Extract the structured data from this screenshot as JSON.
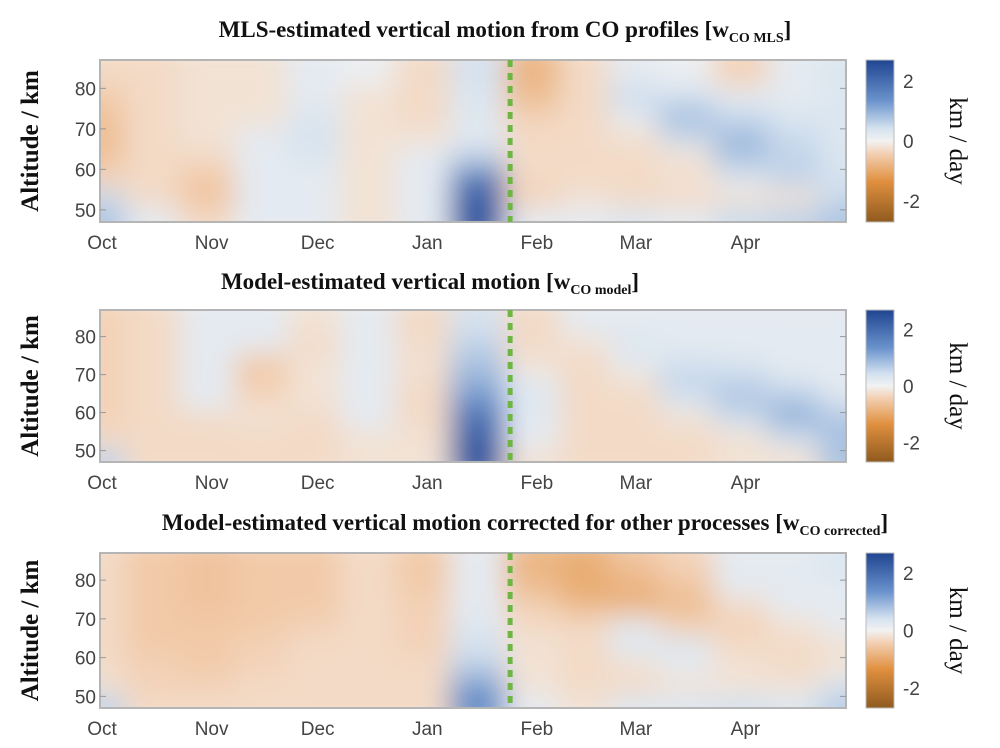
{
  "chart_data": [
    {
      "type": "heatmap",
      "title": "MLS-estimated vertical motion from CO profiles [w",
      "title_subscript": "CO MLS",
      "title_close": "]",
      "ylabel": "Altitude / km",
      "colorbar_label": "km / day",
      "ylim": [
        47,
        87
      ],
      "yticks": [
        50,
        60,
        70,
        80
      ],
      "xlim": [
        "2000-10-01",
        "2001-04-30"
      ],
      "xtick_labels": [
        "Oct",
        "Nov",
        "Dec",
        "Jan",
        "Feb",
        "Mar",
        "Apr"
      ],
      "clim": [
        -2.7,
        2.7
      ],
      "cbar_ticks": [
        2,
        0,
        -2
      ],
      "marker_line_date": "2001-01-25",
      "x": [
        "10-01",
        "10-15",
        "11-01",
        "11-15",
        "12-01",
        "12-15",
        "01-01",
        "01-15",
        "02-01",
        "02-15",
        "03-01",
        "03-15",
        "04-01",
        "04-15",
        "04-30"
      ],
      "y": [
        83,
        78,
        73,
        68,
        63,
        58,
        53,
        48
      ],
      "z": [
        [
          -0.3,
          -0.3,
          -0.2,
          -0.2,
          0.2,
          0.1,
          -0.3,
          0.4,
          -0.8,
          -0.3,
          0.2,
          0.1,
          -0.4,
          0.2,
          0.3
        ],
        [
          -0.5,
          -0.3,
          -0.2,
          -0.2,
          0.2,
          -0.2,
          -0.3,
          0.3,
          -0.7,
          -0.3,
          0.5,
          0.4,
          0.2,
          0.2,
          0.3
        ],
        [
          -0.6,
          -0.3,
          -0.2,
          -0.2,
          0.3,
          -0.2,
          -0.3,
          0.3,
          -0.4,
          -0.3,
          0.2,
          0.9,
          0.5,
          0.3,
          0.3
        ],
        [
          -0.7,
          -0.3,
          -0.2,
          0.2,
          0.4,
          -0.2,
          -0.2,
          0.2,
          -0.3,
          -0.3,
          -0.2,
          0.5,
          0.9,
          0.5,
          0.3
        ],
        [
          -0.6,
          -0.3,
          -0.3,
          0.2,
          0.3,
          -0.2,
          0.2,
          0.6,
          -0.3,
          -0.3,
          -0.3,
          -0.2,
          0.8,
          0.6,
          0.3
        ],
        [
          -0.4,
          -0.3,
          -0.5,
          0.2,
          0.2,
          -0.2,
          0.2,
          1.8,
          -0.3,
          -0.3,
          -0.3,
          -0.2,
          0.3,
          0.6,
          0.4
        ],
        [
          0.5,
          -0.3,
          -0.6,
          0.2,
          0.2,
          -0.2,
          0.2,
          2.2,
          -0.4,
          -0.2,
          -0.3,
          -0.3,
          -0.2,
          -0.2,
          0.5
        ],
        [
          0.8,
          0.2,
          -0.3,
          0.2,
          0.2,
          -0.2,
          0.2,
          2.4,
          0.2,
          0.2,
          0.3,
          0.2,
          0.5,
          0.6,
          0.8
        ]
      ]
    },
    {
      "type": "heatmap",
      "title": "Model-estimated vertical motion [w",
      "title_subscript": "CO model",
      "title_close": "]",
      "ylabel": "Altitude / km",
      "colorbar_label": "km / day",
      "ylim": [
        47,
        87
      ],
      "yticks": [
        50,
        60,
        70,
        80
      ],
      "xlim": [
        "2000-10-01",
        "2001-04-30"
      ],
      "xtick_labels": [
        "Oct",
        "Nov",
        "Dec",
        "Jan",
        "Feb",
        "Mar",
        "Apr"
      ],
      "clim": [
        -2.7,
        2.7
      ],
      "cbar_ticks": [
        2,
        0,
        -2
      ],
      "marker_line_date": "2001-01-25",
      "x": [
        "10-01",
        "10-15",
        "11-01",
        "11-15",
        "12-01",
        "12-15",
        "01-01",
        "01-15",
        "02-01",
        "02-15",
        "03-01",
        "03-15",
        "04-01",
        "04-15",
        "04-30"
      ],
      "y": [
        83,
        78,
        73,
        68,
        63,
        58,
        53,
        48
      ],
      "z": [
        [
          -0.4,
          -0.3,
          0.2,
          0.2,
          -0.2,
          0.2,
          -0.3,
          0.4,
          -0.3,
          0.2,
          0.2,
          0.2,
          0.2,
          0.2,
          0.2
        ],
        [
          -0.4,
          -0.3,
          0.2,
          0.2,
          -0.3,
          0.2,
          -0.3,
          0.6,
          -0.3,
          -0.2,
          0.3,
          0.2,
          0.2,
          0.2,
          0.2
        ],
        [
          -0.4,
          -0.3,
          0.2,
          -0.5,
          -0.2,
          0.2,
          -0.2,
          0.8,
          -0.2,
          -0.3,
          0.2,
          0.4,
          0.3,
          0.2,
          0.2
        ],
        [
          -0.4,
          -0.3,
          0.2,
          -0.5,
          -0.2,
          0.2,
          -0.3,
          1.0,
          0.2,
          -0.3,
          -0.2,
          0.6,
          0.6,
          0.3,
          0.2
        ],
        [
          -0.4,
          -0.3,
          0.2,
          -0.3,
          -0.2,
          0.2,
          -0.3,
          1.4,
          0.3,
          -0.3,
          -0.3,
          0.3,
          0.8,
          0.8,
          0.3
        ],
        [
          -0.4,
          -0.3,
          -0.3,
          -0.2,
          -0.3,
          0.2,
          -0.3,
          2.0,
          0.2,
          -0.3,
          -0.3,
          -0.2,
          0.4,
          1.0,
          0.8
        ],
        [
          -0.3,
          -0.3,
          -0.3,
          -0.3,
          -0.3,
          -0.2,
          -0.2,
          2.2,
          0.2,
          -0.3,
          -0.3,
          -0.3,
          -0.2,
          0.4,
          0.8
        ],
        [
          0.6,
          -0.3,
          -0.3,
          -0.3,
          -0.3,
          -0.2,
          -0.2,
          2.4,
          -0.2,
          -0.3,
          -0.3,
          -0.3,
          -0.2,
          -0.2,
          0.8
        ]
      ]
    },
    {
      "type": "heatmap",
      "title": "Model-estimated vertical motion corrected for other processes [w",
      "title_subscript": "CO corrected",
      "title_close": "]",
      "ylabel": "Altitude / km",
      "colorbar_label": "km / day",
      "ylim": [
        47,
        87
      ],
      "yticks": [
        50,
        60,
        70,
        80
      ],
      "xlim": [
        "2000-10-01",
        "2001-04-30"
      ],
      "xtick_labels": [
        "Oct",
        "Nov",
        "Dec",
        "Jan",
        "Feb",
        "Mar",
        "Apr"
      ],
      "clim": [
        -2.7,
        2.7
      ],
      "cbar_ticks": [
        2,
        0,
        -2
      ],
      "marker_line_date": "2001-01-25",
      "x": [
        "10-01",
        "10-15",
        "11-01",
        "11-15",
        "12-01",
        "12-15",
        "01-01",
        "01-15",
        "02-01",
        "02-15",
        "03-01",
        "03-15",
        "04-01",
        "04-15",
        "04-30"
      ],
      "y": [
        83,
        78,
        73,
        68,
        63,
        58,
        53,
        48
      ],
      "z": [
        [
          -0.3,
          -0.5,
          -0.6,
          -0.5,
          -0.5,
          -0.3,
          -0.5,
          0.2,
          -0.8,
          -0.9,
          -0.6,
          -0.4,
          0.2,
          0.2,
          0.3
        ],
        [
          -0.3,
          -0.5,
          -0.6,
          -0.5,
          -0.5,
          -0.3,
          -0.5,
          0.2,
          -0.7,
          -1.0,
          -0.9,
          -0.6,
          0.2,
          0.2,
          0.2
        ],
        [
          -0.3,
          -0.5,
          -0.6,
          -0.5,
          -0.5,
          -0.3,
          -0.4,
          0.2,
          -0.4,
          -0.7,
          -0.8,
          -0.7,
          -0.3,
          0.2,
          0.2
        ],
        [
          -0.3,
          -0.5,
          -0.5,
          -0.5,
          -0.4,
          -0.3,
          -0.4,
          0.3,
          -0.3,
          -0.3,
          0.2,
          -0.4,
          -0.4,
          -0.2,
          0.2
        ],
        [
          -0.3,
          -0.5,
          -0.5,
          -0.4,
          -0.3,
          -0.3,
          -0.4,
          0.4,
          -0.2,
          -0.3,
          0.3,
          0.3,
          -0.3,
          -0.3,
          -0.2
        ],
        [
          -0.3,
          -0.4,
          -0.5,
          -0.4,
          -0.3,
          -0.3,
          -0.3,
          0.6,
          -0.2,
          -0.3,
          -0.2,
          0.2,
          -0.2,
          -0.3,
          -0.2
        ],
        [
          -0.2,
          -0.4,
          -0.4,
          -0.3,
          -0.3,
          -0.3,
          -0.3,
          1.2,
          -0.2,
          -0.3,
          -0.3,
          -0.2,
          -0.2,
          -0.2,
          0.3
        ],
        [
          0.6,
          -0.3,
          -0.3,
          -0.3,
          -0.3,
          -0.3,
          -0.3,
          1.5,
          0.2,
          -0.2,
          0.3,
          0.3,
          0.4,
          0.3,
          0.7
        ]
      ]
    }
  ],
  "colors": {
    "colormap": [
      "#8f5a1e",
      "#e0903f",
      "#f3cfb2",
      "#f2f2f2",
      "#d3e1ef",
      "#6a93cc",
      "#1f4591"
    ],
    "marker_line": "#6fb544"
  }
}
